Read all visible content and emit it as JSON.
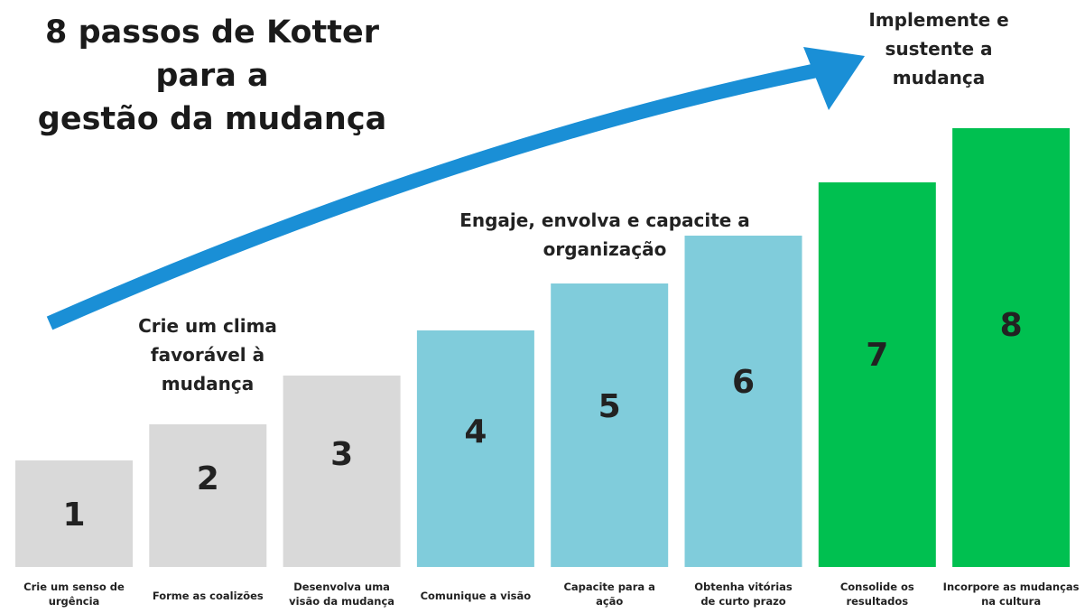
{
  "title": [
    "8 passos de Kotter para a",
    "gestão da mudança"
  ],
  "groups": [
    {
      "lines": [
        "Crie um clima",
        "favorável à",
        "mudança"
      ]
    },
    {
      "lines": [
        "Engaje, envolva e capacite a",
        "organização"
      ]
    },
    {
      "lines": [
        "Implemente e",
        "sustente a",
        "mudança"
      ]
    }
  ],
  "steps": [
    {
      "number": "1",
      "label": [
        "Crie um senso de",
        "urgência"
      ]
    },
    {
      "number": "2",
      "label": [
        "Forme as coalizões"
      ]
    },
    {
      "number": "3",
      "label": [
        "Desenvolva uma",
        "visão da mudança"
      ]
    },
    {
      "number": "4",
      "label": [
        "Comunique a visão"
      ]
    },
    {
      "number": "5",
      "label": [
        "Capacite para a",
        "ação"
      ]
    },
    {
      "number": "6",
      "label": [
        "Obtenha vitórias",
        "de curto prazo"
      ]
    },
    {
      "number": "7",
      "label": [
        "Consolide os",
        "resultados"
      ]
    },
    {
      "number": "8",
      "label": [
        "Incorpore as mudanças",
        "na cultura"
      ]
    }
  ]
}
